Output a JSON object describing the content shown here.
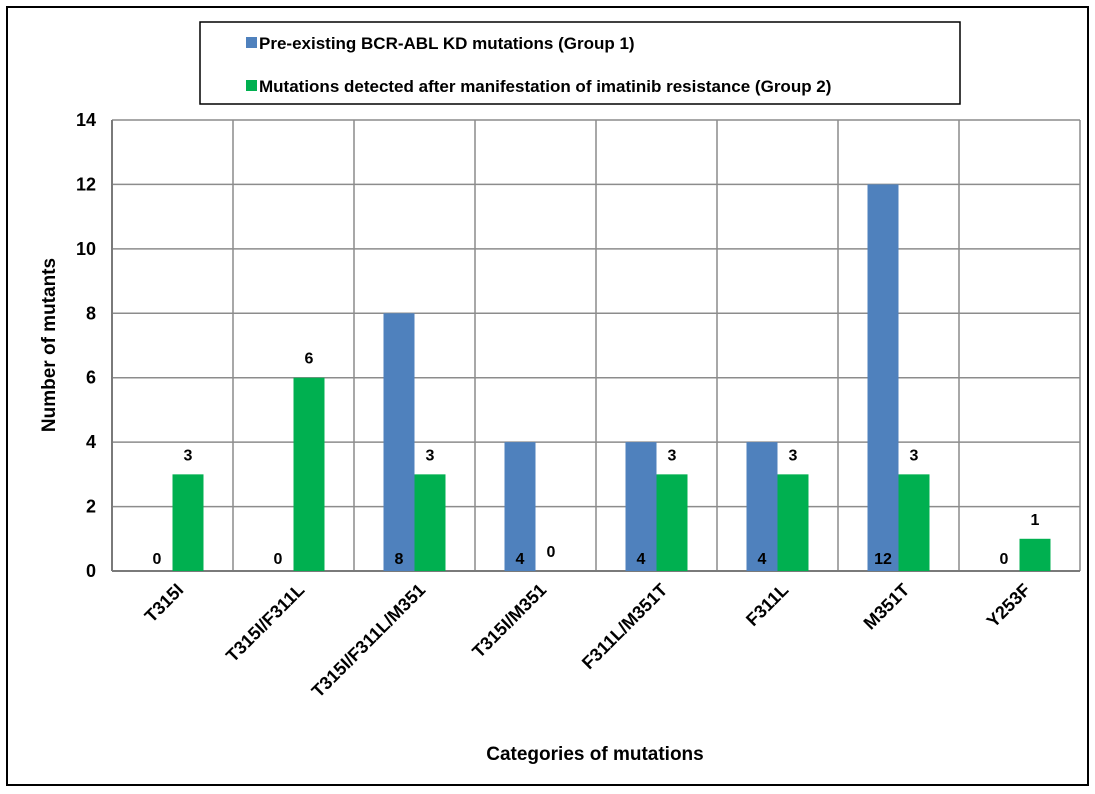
{
  "chart_data": {
    "type": "bar",
    "title": "",
    "xlabel": "Categories of mutations",
    "ylabel": "Number of mutants",
    "ylim": [
      0,
      14
    ],
    "yticks": [
      0,
      2,
      4,
      6,
      8,
      10,
      12,
      14
    ],
    "grid": true,
    "legend_position": "top",
    "categories": [
      "T315I",
      "T315I/F311L",
      "T315I/F311L/M351",
      "T315I/M351",
      "F311L/M351T",
      "F311L",
      "M351T",
      "Y253F"
    ],
    "series": [
      {
        "name": "Pre-existing BCR-ABL KD mutations (Group 1)",
        "color": "#4F81BD",
        "values": [
          0,
          0,
          8,
          4,
          4,
          4,
          12,
          0
        ],
        "labels": [
          "0",
          "0",
          "8",
          "4",
          "4",
          "4",
          "12",
          "0"
        ]
      },
      {
        "name": "Mutations detected after manifestation of imatinib resistance (Group 2)",
        "color": "#00B050",
        "values": [
          3,
          6,
          3,
          0,
          3,
          3,
          3,
          1
        ],
        "labels": [
          "3",
          "6",
          "3",
          "0",
          "3",
          "3",
          "3",
          "1"
        ]
      }
    ]
  }
}
